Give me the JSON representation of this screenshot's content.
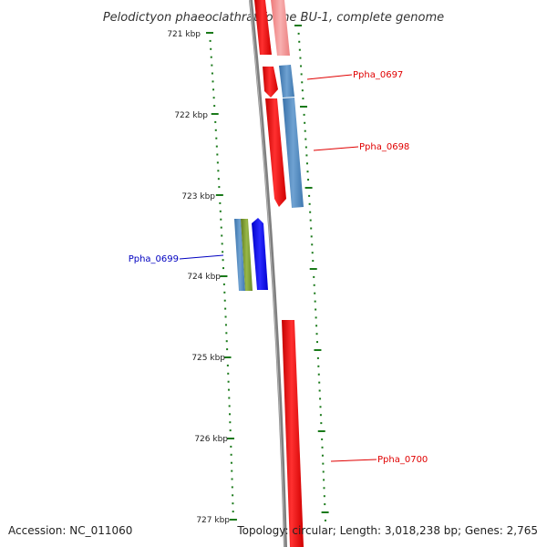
{
  "title": "Pelodictyon phaeoclathratiforme BU-1, complete genome",
  "position_labels": [
    "721 kbp",
    "722 kbp",
    "723 kbp",
    "724 kbp",
    "725 kbp",
    "726 kbp",
    "727 kbp"
  ],
  "gene_labels": [
    {
      "name": "Ppha_0697",
      "color": "#e00000"
    },
    {
      "name": "Ppha_0698",
      "color": "#e00000"
    },
    {
      "name": "Ppha_0699",
      "color": "#0000c0"
    },
    {
      "name": "Ppha_0700",
      "color": "#e00000"
    }
  ],
  "footer": {
    "accession": "Accession: NC_011060",
    "summary": "Topology: circular; Length: 3,018,238 bp; Genes: 2,765"
  },
  "colors": {
    "forward_gene": "#ff0000",
    "reverse_gene": "#4f86c0",
    "rna_gene_dark": "#0000ff",
    "olive_feature": "#7a9a2e",
    "tick": "#1a7a1a",
    "backbone": "#7f7f7f"
  }
}
